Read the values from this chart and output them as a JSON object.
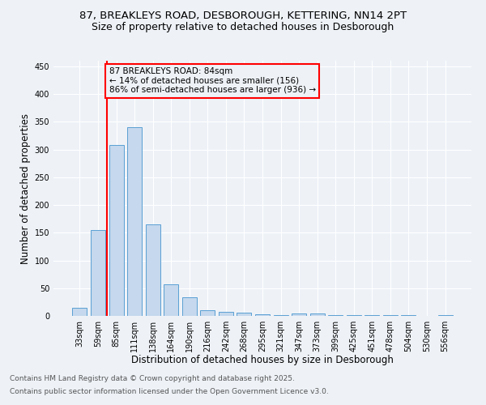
{
  "title_line1": "87, BREAKLEYS ROAD, DESBOROUGH, KETTERING, NN14 2PT",
  "title_line2": "Size of property relative to detached houses in Desborough",
  "xlabel": "Distribution of detached houses by size in Desborough",
  "ylabel": "Number of detached properties",
  "categories": [
    "33sqm",
    "59sqm",
    "85sqm",
    "111sqm",
    "138sqm",
    "164sqm",
    "190sqm",
    "216sqm",
    "242sqm",
    "268sqm",
    "295sqm",
    "321sqm",
    "347sqm",
    "373sqm",
    "399sqm",
    "425sqm",
    "451sqm",
    "478sqm",
    "504sqm",
    "530sqm",
    "556sqm"
  ],
  "values": [
    15,
    155,
    308,
    340,
    165,
    57,
    33,
    10,
    8,
    6,
    3,
    1,
    5,
    4,
    2,
    1,
    2,
    1,
    1,
    0,
    2
  ],
  "bar_color": "#c5d8ed",
  "bar_edge_color": "#5a9fd4",
  "bar_width": 0.8,
  "ylim": [
    0,
    460
  ],
  "yticks": [
    0,
    50,
    100,
    150,
    200,
    250,
    300,
    350,
    400,
    450
  ],
  "annotation_box_text": "87 BREAKLEYS ROAD: 84sqm\n← 14% of detached houses are smaller (156)\n86% of semi-detached houses are larger (936) →",
  "red_line_x": 1.5,
  "footer_line1": "Contains HM Land Registry data © Crown copyright and database right 2025.",
  "footer_line2": "Contains public sector information licensed under the Open Government Licence v3.0.",
  "bg_color": "#eef2f7",
  "grid_color": "#ffffff",
  "annotation_fontsize": 7.5,
  "title_fontsize": 9.5,
  "subtitle_fontsize": 9,
  "xlabel_fontsize": 8.5,
  "ylabel_fontsize": 8.5,
  "tick_fontsize": 7,
  "footer_fontsize": 6.5
}
